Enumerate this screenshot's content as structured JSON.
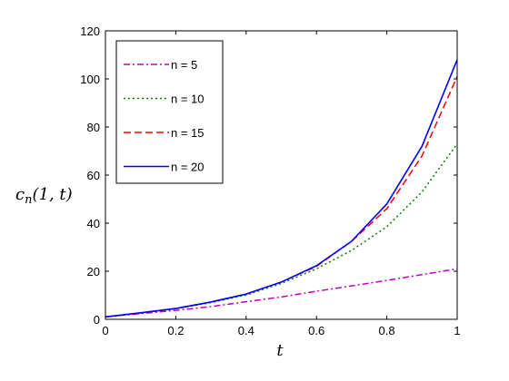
{
  "chart_data": {
    "type": "line",
    "xlabel": "t",
    "ylabel": {
      "prefix": "c",
      "subscript": "n",
      "suffix": "(1, t)"
    },
    "xlim": [
      0,
      1
    ],
    "ylim": [
      0,
      120
    ],
    "xticks": [
      0,
      0.2,
      0.4,
      0.6,
      0.8,
      1
    ],
    "xtick_labels": [
      "0",
      "0.2",
      "0.4",
      "0.6",
      "0.8",
      "1"
    ],
    "yticks": [
      0,
      20,
      40,
      60,
      80,
      100,
      120
    ],
    "ytick_labels": [
      "0",
      "20",
      "40",
      "60",
      "80",
      "100",
      "120"
    ],
    "grid": false,
    "legend_position": "top-left",
    "x": [
      0,
      0.1,
      0.2,
      0.3,
      0.4,
      0.5,
      0.6,
      0.7,
      0.8,
      0.9,
      1.0
    ],
    "series": [
      {
        "name": "n = 5",
        "color": "#bf00bf",
        "style": "dash-dot",
        "values": [
          1,
          2.4,
          3.7,
          5.3,
          7.3,
          9.3,
          11.7,
          13.9,
          16.2,
          18.6,
          21
        ]
      },
      {
        "name": "n = 10",
        "color": "#008000",
        "style": "dotted",
        "values": [
          1,
          2.7,
          4.4,
          7.0,
          10.1,
          14.9,
          21.0,
          28.7,
          38.5,
          53,
          73
        ]
      },
      {
        "name": "n = 15",
        "color": "#ff0000",
        "style": "dashed",
        "values": [
          1,
          2.7,
          4.5,
          7.2,
          10.5,
          15.5,
          22.0,
          32.5,
          46.0,
          68,
          101
        ]
      },
      {
        "name": "n = 20",
        "color": "#0000ff",
        "style": "solid",
        "values": [
          1,
          2.7,
          4.5,
          7.2,
          10.5,
          15.5,
          22.3,
          32.5,
          48.0,
          72,
          108
        ]
      }
    ]
  }
}
